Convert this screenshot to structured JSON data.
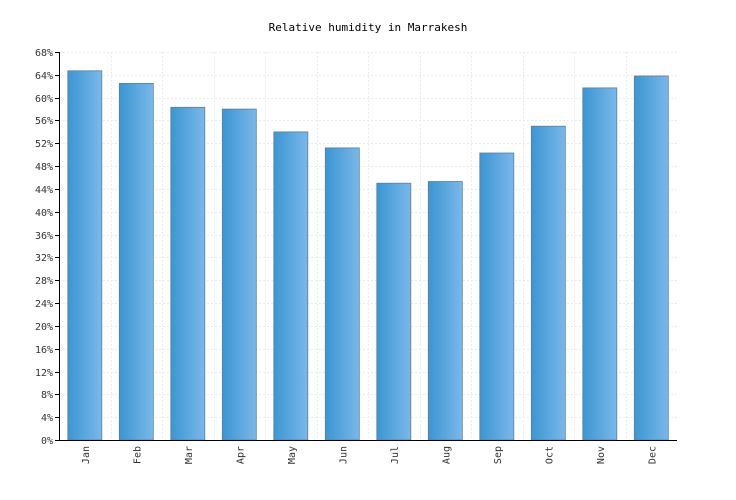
{
  "chart_data": {
    "type": "bar",
    "title": "Relative humidity in Marrakesh",
    "xlabel": "",
    "ylabel": "",
    "categories": [
      "Jan",
      "Feb",
      "Mar",
      "Apr",
      "May",
      "Jun",
      "Jul",
      "Aug",
      "Sep",
      "Oct",
      "Nov",
      "Dec"
    ],
    "series": [
      {
        "name": "",
        "values": [
          64.7,
          62.5,
          58.3,
          58.0,
          54.0,
          51.2,
          45.0,
          45.3,
          50.3,
          55.0,
          61.7,
          63.8
        ]
      }
    ],
    "ylim": [
      0,
      68
    ],
    "yticks": [
      0,
      4,
      8,
      12,
      16,
      20,
      24,
      28,
      32,
      36,
      40,
      44,
      48,
      52,
      56,
      60,
      64,
      68
    ],
    "ytick_suffix": "%",
    "grid": true,
    "legend": "none",
    "colors": {
      "bar_light": "#7ab8ea",
      "bar_dark": "#3a96d2",
      "bar_stroke": "#5a7fa0",
      "grid": "#ececec",
      "axis": "#000000"
    }
  }
}
